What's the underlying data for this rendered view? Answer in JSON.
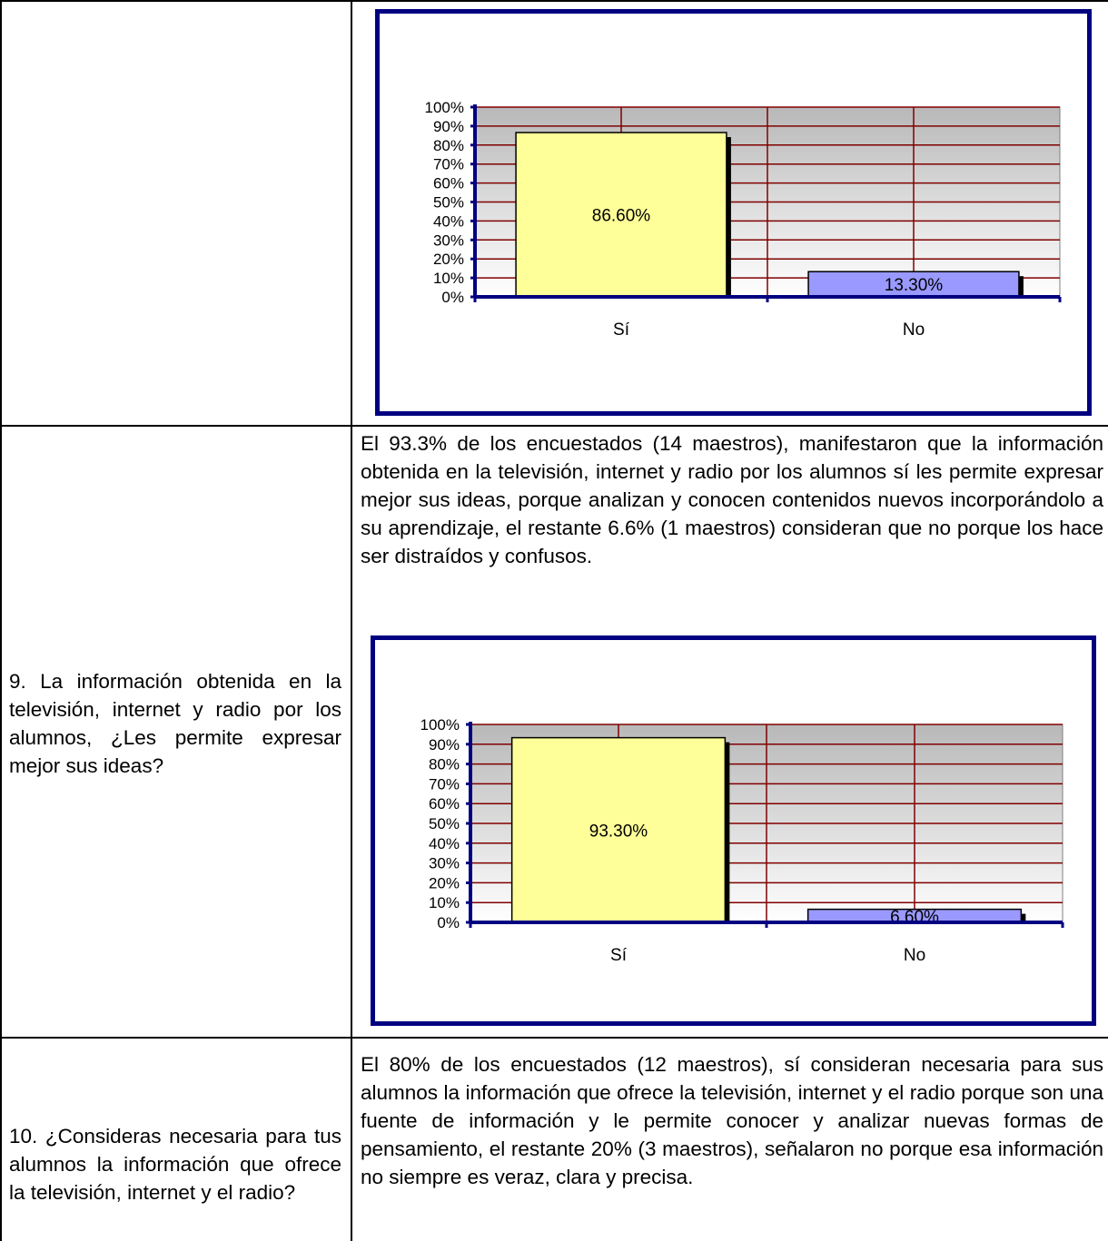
{
  "rows": [
    {
      "question": "",
      "answer": "",
      "chart_index": 0
    },
    {
      "question": "9. La información obtenida en la televisión, internet y radio por los alumnos, ¿Les permite expresar mejor sus ideas?",
      "answer": "El 93.3% de los encuestados (14 maestros), manifestaron que la información obtenida en la televisión, internet y radio por los alumnos sí les permite expresar mejor sus ideas, porque analizan y conocen contenidos nuevos incorporándolo a su aprendizaje, el restante 6.6% (1 maestros) consideran que no porque los hace ser distraídos y confusos.",
      "chart_index": 1
    },
    {
      "question": "10. ¿Consideras necesaria para tus alumnos la información que ofrece la televisión, internet y el radio?",
      "answer": "El 80% de los encuestados (12 maestros), sí consideran necesaria para sus alumnos la información que ofrece la televisión, internet y el radio porque son una fuente de información y le permite conocer y analizar nuevas formas de pensamiento, el restante 20% (3 maestros), señalaron no porque esa información no siempre es veraz, clara y precisa."
    }
  ],
  "chart_data": [
    {
      "type": "bar",
      "categories": [
        "Sí",
        "No"
      ],
      "values": [
        86.6,
        13.3
      ],
      "data_labels": [
        "86.60%",
        "13.30%"
      ],
      "yticks": [
        "0%",
        "10%",
        "20%",
        "30%",
        "40%",
        "50%",
        "60%",
        "70%",
        "80%",
        "90%",
        "100%"
      ],
      "ylim": [
        0,
        100
      ],
      "grid": true,
      "colors": {
        "Sí": "#ffff99",
        "No": "#9999ff",
        "grid": "#800000",
        "axis": "#000080"
      }
    },
    {
      "type": "bar",
      "categories": [
        "Sí",
        "No"
      ],
      "values": [
        93.3,
        6.6
      ],
      "data_labels": [
        "93.30%",
        "6.60%"
      ],
      "yticks": [
        "0%",
        "10%",
        "20%",
        "30%",
        "40%",
        "50%",
        "60%",
        "70%",
        "80%",
        "90%",
        "100%"
      ],
      "ylim": [
        0,
        100
      ],
      "grid": true,
      "colors": {
        "Sí": "#ffff99",
        "No": "#9999ff",
        "grid": "#800000",
        "axis": "#000080"
      }
    }
  ]
}
